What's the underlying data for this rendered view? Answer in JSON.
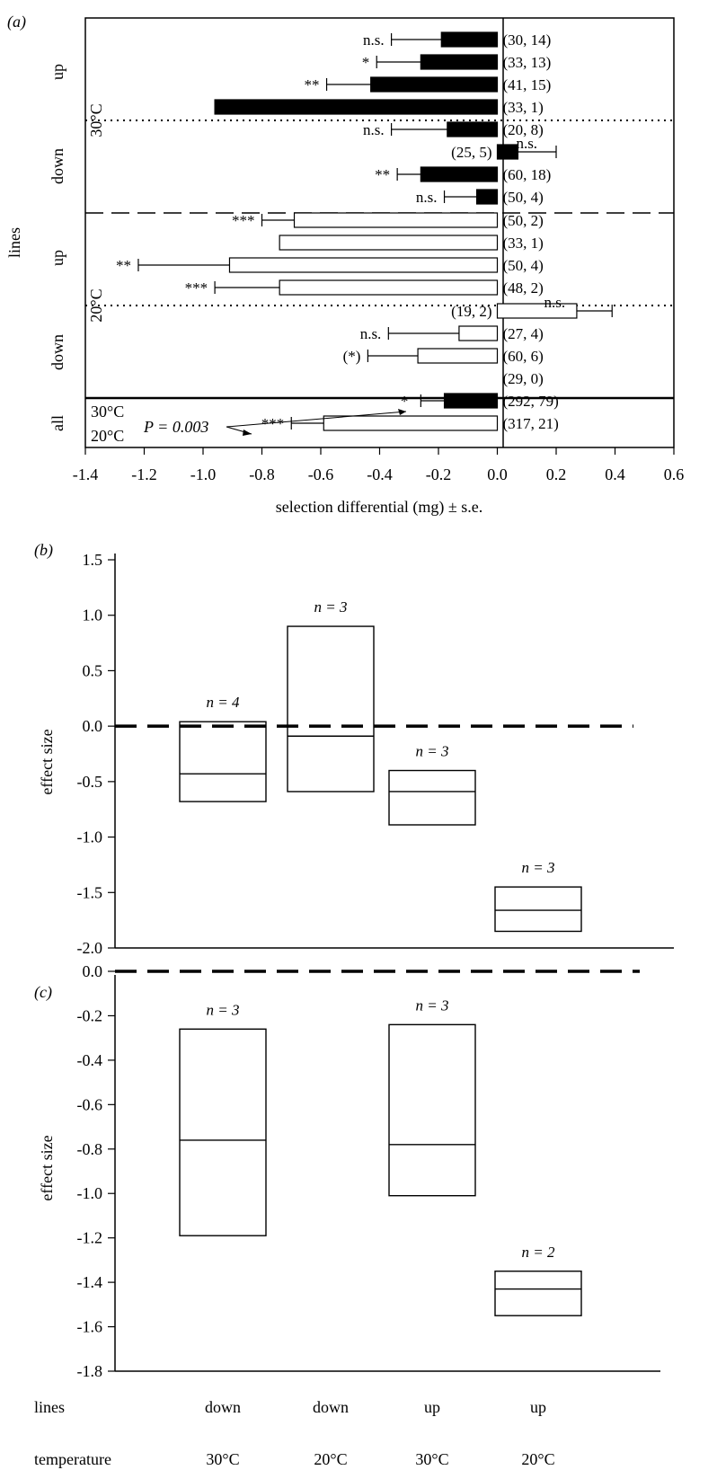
{
  "panel_a": {
    "panel_label": "(a)",
    "xlabel": "selection differential (mg) ± s.e.",
    "ylabel": "lines",
    "xlim": [
      -1.4,
      0.6
    ],
    "xticks": [
      "-1.4",
      "-1.2",
      "-1.0",
      "-0.8",
      "-0.6",
      "-0.4",
      "-0.2",
      "0.0",
      "0.2",
      "0.4",
      "0.6"
    ],
    "group_labels": {
      "up_30": "up",
      "down_30": "down",
      "up_20": "up",
      "down_20": "down",
      "all": "all",
      "temp_30": "30°C",
      "temp_20": "20°C"
    },
    "all_labels": {
      "c30": "30°C",
      "c20": "20°C",
      "p": "P = 0.003"
    },
    "rows": [
      {
        "value": -0.19,
        "se": 0.17,
        "fill": "#000000",
        "label": "(30, 14)",
        "sig": "n.s."
      },
      {
        "value": -0.26,
        "se": 0.15,
        "fill": "#000000",
        "label": "(33, 13)",
        "sig": "*"
      },
      {
        "value": -0.43,
        "se": 0.15,
        "fill": "#000000",
        "label": "(41, 15)",
        "sig": "**"
      },
      {
        "value": -0.96,
        "se": null,
        "fill": "#000000",
        "label": "(33, 1)",
        "sig": ""
      },
      {
        "value": -0.17,
        "se": 0.19,
        "fill": "#000000",
        "label": "(20, 8)",
        "sig": "n.s."
      },
      {
        "value": 0.07,
        "se": 0.13,
        "fill": "#000000",
        "label": "(25, 5)",
        "sig": "n.s."
      },
      {
        "value": -0.26,
        "se": 0.08,
        "fill": "#000000",
        "label": "(60, 18)",
        "sig": "**"
      },
      {
        "value": -0.07,
        "se": 0.11,
        "fill": "#000000",
        "label": "(50, 4)",
        "sig": "n.s."
      },
      {
        "value": -0.69,
        "se": 0.11,
        "fill": "#ffffff",
        "label": "(50, 2)",
        "sig": "***"
      },
      {
        "value": -0.74,
        "se": null,
        "fill": "#ffffff",
        "label": "(33, 1)",
        "sig": ""
      },
      {
        "value": -0.91,
        "se": 0.31,
        "fill": "#ffffff",
        "label": "(50, 4)",
        "sig": "**"
      },
      {
        "value": -0.74,
        "se": 0.22,
        "fill": "#ffffff",
        "label": "(48, 2)",
        "sig": "***"
      },
      {
        "value": 0.27,
        "se": 0.12,
        "fill": "#ffffff",
        "label": "(19, 2)",
        "sig": "n.s."
      },
      {
        "value": -0.13,
        "se": 0.24,
        "fill": "#ffffff",
        "label": "(27, 4)",
        "sig": "n.s."
      },
      {
        "value": -0.27,
        "se": 0.17,
        "fill": "#ffffff",
        "label": "(60, 6)",
        "sig": "(*)"
      },
      {
        "value": 0.0,
        "se": null,
        "fill": "#ffffff",
        "label": "(29, 0)",
        "sig": ""
      },
      {
        "value": -0.18,
        "se": 0.08,
        "fill": "#000000",
        "label": "(292, 79)",
        "sig": "*"
      },
      {
        "value": -0.59,
        "se": 0.11,
        "fill": "#ffffff",
        "label": "(317, 21)",
        "sig": "***"
      }
    ]
  },
  "panel_b": {
    "panel_label": "(b)",
    "ylabel": "effect size",
    "ylim": [
      -2.0,
      1.5
    ],
    "yticks": [
      "1.5",
      "1.0",
      "0.5",
      "0.0",
      "-0.5",
      "-1.0",
      "-1.5",
      "-2.0"
    ],
    "boxes": [
      {
        "low": -0.68,
        "mid": -0.43,
        "high": 0.04,
        "n": "n = 4"
      },
      {
        "low": -0.59,
        "mid": -0.09,
        "high": 0.9,
        "n": "n = 3"
      },
      {
        "low": -0.89,
        "mid": -0.59,
        "high": -0.4,
        "n": "n = 3"
      },
      {
        "low": -1.85,
        "mid": -1.66,
        "high": -1.45,
        "n": "n = 3"
      }
    ]
  },
  "panel_c": {
    "panel_label": "(c)",
    "ylabel": "effect size",
    "ylim": [
      -1.8,
      0.0
    ],
    "yticks": [
      "0.0",
      "-0.2",
      "-0.4",
      "-0.6",
      "-0.8",
      "-1.0",
      "-1.2",
      "-1.4",
      "-1.6",
      "-1.8"
    ],
    "boxes": [
      {
        "low": -1.19,
        "mid": -0.76,
        "high": -0.26,
        "n": "n = 3"
      },
      null,
      {
        "low": -1.01,
        "mid": -0.78,
        "high": -0.24,
        "n": "n = 3"
      },
      {
        "low": -1.55,
        "mid": -1.43,
        "high": -1.35,
        "n": "n = 2"
      }
    ]
  },
  "bottom_axis": {
    "row1_label": "lines",
    "row2_label": "temperature",
    "lines": [
      "down",
      "down",
      "up",
      "up"
    ],
    "temperature": [
      "30°C",
      "20°C",
      "30°C",
      "20°C"
    ]
  },
  "chart_data": [
    {
      "type": "bar",
      "orientation": "horizontal",
      "title": "",
      "xlabel": "selection differential (mg) ± s.e.",
      "ylabel": "lines",
      "xlim": [
        -1.4,
        0.6
      ],
      "categories": [
        "30°C up",
        "30°C up",
        "30°C up",
        "30°C up",
        "30°C down",
        "30°C down",
        "30°C down",
        "30°C down",
        "20°C up",
        "20°C up",
        "20°C up",
        "20°C up",
        "20°C down",
        "20°C down",
        "20°C down",
        "20°C down",
        "all 30°C",
        "all 20°C"
      ],
      "values": [
        -0.19,
        -0.26,
        -0.43,
        -0.96,
        -0.17,
        0.07,
        -0.26,
        -0.07,
        -0.69,
        -0.74,
        -0.91,
        -0.74,
        0.27,
        -0.13,
        -0.27,
        0.0,
        -0.18,
        -0.59
      ],
      "se": [
        0.17,
        0.15,
        0.15,
        null,
        0.19,
        0.13,
        0.08,
        0.11,
        0.11,
        null,
        0.31,
        0.22,
        0.12,
        0.24,
        0.17,
        null,
        0.08,
        0.11
      ]
    },
    {
      "type": "box",
      "ylabel": "effect size",
      "ylim": [
        -2.0,
        1.5
      ],
      "categories": [
        "down 30°C",
        "down 20°C",
        "up 30°C",
        "up 20°C"
      ],
      "low": [
        -0.68,
        -0.59,
        -0.89,
        -1.85
      ],
      "mid": [
        -0.43,
        -0.09,
        -0.59,
        -1.66
      ],
      "high": [
        0.04,
        0.9,
        -0.4,
        -1.45
      ],
      "n": [
        4,
        3,
        3,
        3
      ]
    },
    {
      "type": "box",
      "ylabel": "effect size",
      "ylim": [
        -1.8,
        0.0
      ],
      "categories": [
        "down 30°C",
        "down 20°C",
        "up 30°C",
        "up 20°C"
      ],
      "low": [
        -1.19,
        null,
        -1.01,
        -1.55
      ],
      "mid": [
        -0.76,
        null,
        -0.78,
        -1.43
      ],
      "high": [
        -0.26,
        null,
        -0.24,
        -1.35
      ],
      "n": [
        3,
        null,
        3,
        2
      ]
    }
  ]
}
